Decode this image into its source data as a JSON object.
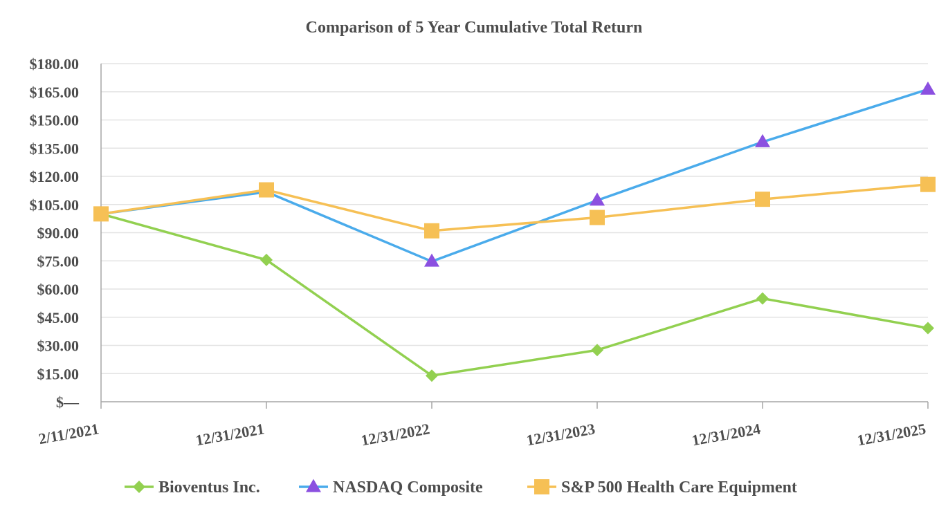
{
  "chart_data": {
    "type": "line",
    "title": "Comparison of 5 Year Cumulative Total Return",
    "xlabel": "",
    "ylabel": "",
    "categories": [
      "2/11/2021",
      "12/31/2021",
      "12/31/2022",
      "12/31/2023",
      "12/31/2024",
      "12/31/2025"
    ],
    "ylim": [
      0,
      180
    ],
    "yticks": [
      0,
      15,
      30,
      45,
      60,
      75,
      90,
      105,
      120,
      135,
      150,
      165,
      180
    ],
    "ytick_labels": [
      "$—",
      "$15.00",
      "$30.00",
      "$45.00",
      "$60.00",
      "$75.00",
      "$90.00",
      "$105.00",
      "$120.00",
      "$135.00",
      "$150.00",
      "$165.00",
      "$180.00"
    ],
    "grid": true,
    "legend_position": "bottom",
    "series": [
      {
        "name": "Bioventus Inc.",
        "color": "#92d050",
        "marker": "diamond",
        "values": [
          100,
          75.5,
          13.9,
          27.5,
          55,
          39.2
        ]
      },
      {
        "name": "NASDAQ Composite",
        "color": "#4aabeb",
        "marker_color": "#8b50e0",
        "marker": "triangle",
        "values": [
          100,
          111.7,
          74.7,
          107.2,
          138.3,
          166.3
        ]
      },
      {
        "name": "S&P 500 Health Care Equipment",
        "color": "#f6c055",
        "marker": "square",
        "values": [
          100,
          112.8,
          91,
          98.1,
          107.8,
          115.7
        ]
      }
    ]
  }
}
